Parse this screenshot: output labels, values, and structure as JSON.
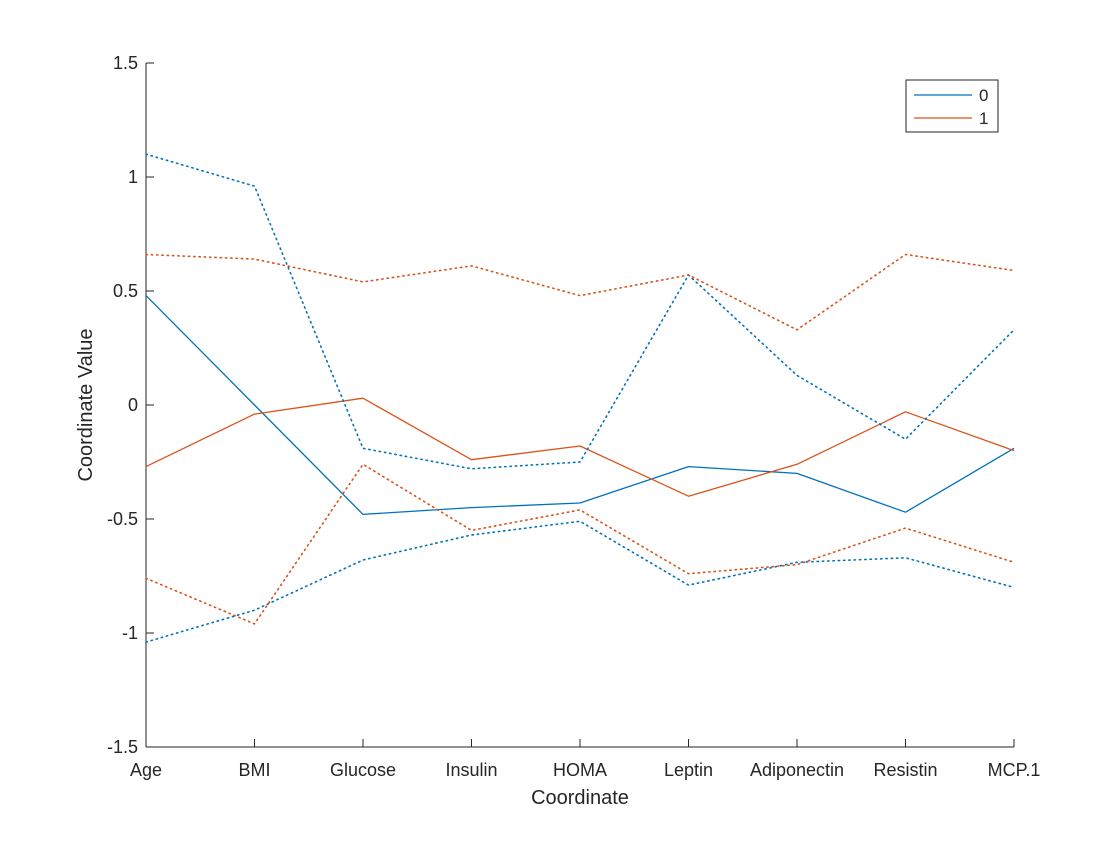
{
  "chart_data": {
    "type": "line",
    "title": "",
    "xlabel": "Coordinate",
    "ylabel": "Coordinate Value",
    "categories": [
      "Age",
      "BMI",
      "Glucose",
      "Insulin",
      "HOMA",
      "Leptin",
      "Adiponectin",
      "Resistin",
      "MCP.1"
    ],
    "ylim": [
      -1.5,
      1.5
    ],
    "yticks": [
      -1.5,
      -1,
      -0.5,
      0,
      0.5,
      1,
      1.5
    ],
    "ytick_labels": [
      "-1.5",
      "-1",
      "-0.5",
      "0",
      "0.5",
      "1",
      "1.5"
    ],
    "grid": false,
    "legend_position": "top-right",
    "colors": {
      "0": "#0072BD",
      "1": "#D95319",
      "axis": "#262626"
    },
    "series": [
      {
        "name": "0",
        "group": "0",
        "style": "solid",
        "values": [
          0.48,
          0.0,
          -0.48,
          -0.45,
          -0.43,
          -0.27,
          -0.3,
          -0.47,
          -0.19
        ]
      },
      {
        "name": "1",
        "group": "1",
        "style": "solid",
        "values": [
          -0.27,
          -0.04,
          0.03,
          -0.24,
          -0.18,
          -0.4,
          -0.26,
          -0.03,
          -0.2
        ]
      },
      {
        "group": "0",
        "style": "dotted",
        "values": [
          1.1,
          0.96,
          -0.19,
          -0.28,
          -0.25,
          0.57,
          0.13,
          -0.15,
          0.33
        ]
      },
      {
        "group": "0",
        "style": "dotted",
        "values": [
          -1.04,
          -0.9,
          -0.68,
          -0.57,
          -0.51,
          -0.79,
          -0.69,
          -0.67,
          -0.8
        ]
      },
      {
        "group": "1",
        "style": "dotted",
        "values": [
          0.66,
          0.64,
          0.54,
          0.61,
          0.48,
          0.57,
          0.33,
          0.66,
          0.59
        ]
      },
      {
        "group": "1",
        "style": "dotted",
        "values": [
          -0.76,
          -0.96,
          -0.26,
          -0.55,
          -0.46,
          -0.74,
          -0.7,
          -0.54,
          -0.69
        ]
      }
    ],
    "legend": [
      {
        "label": "0",
        "group": "0"
      },
      {
        "label": "1",
        "group": "1"
      }
    ]
  }
}
